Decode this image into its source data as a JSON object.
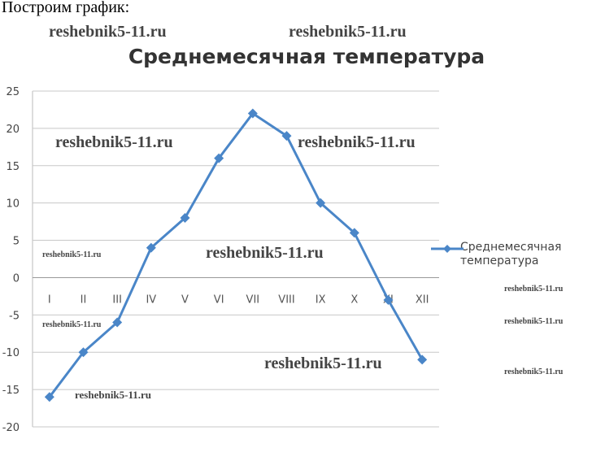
{
  "heading": "Построим график:",
  "watermark": "reshebnik5-11.ru",
  "chart_data": {
    "type": "line",
    "title": "Среднемесячная температура",
    "categories": [
      "I",
      "II",
      "III",
      "IV",
      "V",
      "VI",
      "VII",
      "VIII",
      "IX",
      "X",
      "XI",
      "XII"
    ],
    "series": [
      {
        "name": "Среднемесячная температура",
        "values": [
          -16,
          -10,
          -6,
          4,
          8,
          16,
          22,
          19,
          10,
          6,
          -3,
          -11
        ],
        "color": "#4a86c8",
        "marker": "diamond"
      }
    ],
    "ylim": [
      -20,
      25
    ],
    "yticks": [
      -20,
      -15,
      -10,
      -5,
      0,
      5,
      10,
      15,
      20,
      25
    ],
    "grid": true,
    "legend": "right",
    "xlabel": "",
    "ylabel": ""
  }
}
